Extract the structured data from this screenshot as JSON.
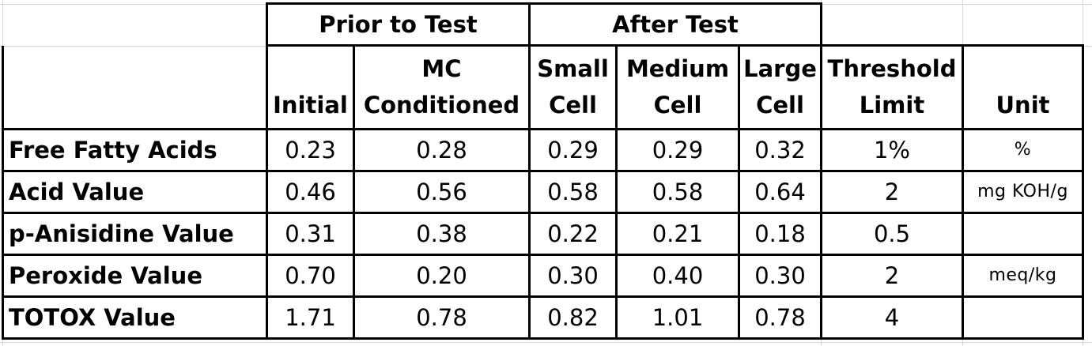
{
  "table": {
    "group_headers": {
      "prior": "Prior to Test",
      "after": "After Test"
    },
    "column_headers": [
      {
        "line1": "",
        "line2": "Initial"
      },
      {
        "line1": "MC",
        "line2": "Conditioned"
      },
      {
        "line1": "Small",
        "line2": "Cell"
      },
      {
        "line1": "Medium",
        "line2": "Cell"
      },
      {
        "line1": "Large",
        "line2": "Cell"
      },
      {
        "line1": "Threshold",
        "line2": "Limit"
      },
      {
        "line1": "",
        "line2": "Unit"
      }
    ],
    "rows": [
      {
        "label": "Free Fatty Acids",
        "values": [
          "0.23",
          "0.28",
          "0.29",
          "0.29",
          "0.32",
          "1%",
          "%"
        ]
      },
      {
        "label": "Acid Value",
        "values": [
          "0.46",
          "0.56",
          "0.58",
          "0.58",
          "0.64",
          "2",
          "mg KOH/g"
        ]
      },
      {
        "label": "p-Anisidine Value",
        "values": [
          "0.31",
          "0.38",
          "0.22",
          "0.21",
          "0.18",
          "0.5",
          ""
        ]
      },
      {
        "label": "Peroxide Value",
        "values": [
          "0.70",
          "0.20",
          "0.30",
          "0.40",
          "0.30",
          "2",
          "meq/kg"
        ]
      },
      {
        "label": "TOTOX Value",
        "values": [
          "1.71",
          "0.78",
          "0.82",
          "1.01",
          "0.78",
          "4",
          ""
        ]
      }
    ]
  }
}
